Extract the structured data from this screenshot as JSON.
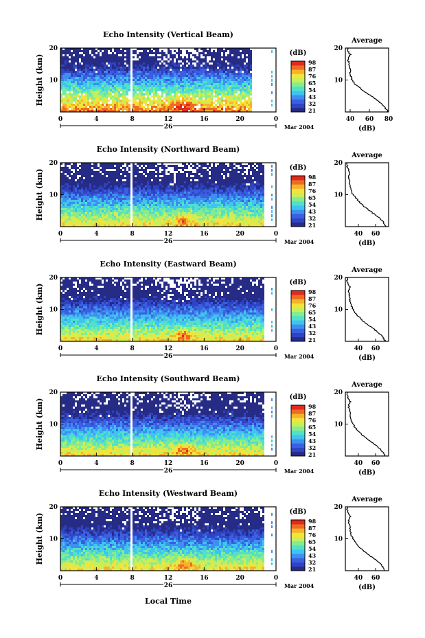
{
  "colors": {
    "scale": [
      "#262b86",
      "#2f44c4",
      "#3a5fe0",
      "#3d8ff0",
      "#3fc4f0",
      "#52e0c8",
      "#86ec8e",
      "#c8ef5a",
      "#f2e43a",
      "#f5b32c",
      "#ef6b22",
      "#e02a1e"
    ],
    "ink": "#000000"
  },
  "x_axis": {
    "title": "Local Time",
    "ticks": [
      "0",
      "4",
      "8",
      "12",
      "16",
      "20",
      "0"
    ],
    "day_label": "26",
    "month_label": "Mar 2004"
  },
  "panels": [
    {
      "title": "Echo Intensity (Vertical Beam)",
      "ylabel": "Height (km)",
      "yticks": [
        "20",
        "10"
      ],
      "cb_label": "(dB)",
      "cb_ticks": [
        "98",
        "87",
        "76",
        "65",
        "54",
        "43",
        "32",
        "21"
      ],
      "avg": {
        "title": "Average",
        "xlabel": "(dB)",
        "xticks": [
          "40",
          "60",
          "80"
        ],
        "yticks": [
          "20",
          "10"
        ]
      }
    },
    {
      "title": "Echo Intensity (Northward Beam)",
      "ylabel": "Height (km)",
      "yticks": [
        "20",
        "10"
      ],
      "cb_label": "(dB)",
      "cb_ticks": [
        "98",
        "87",
        "76",
        "65",
        "54",
        "43",
        "32",
        "21"
      ],
      "avg": {
        "title": "Average",
        "xlabel": "(dB)",
        "xticks": [
          "40",
          "60"
        ],
        "yticks": [
          "20",
          "10"
        ]
      }
    },
    {
      "title": "Echo Intensity (Eastward Beam)",
      "ylabel": "Height (km)",
      "yticks": [
        "20",
        "10"
      ],
      "cb_label": "(dB)",
      "cb_ticks": [
        "98",
        "87",
        "76",
        "65",
        "54",
        "43",
        "32",
        "21"
      ],
      "avg": {
        "title": "Average",
        "xlabel": "(dB)",
        "xticks": [
          "40",
          "60"
        ],
        "yticks": [
          "20",
          "10"
        ]
      }
    },
    {
      "title": "Echo Intensity (Southward Beam)",
      "ylabel": "Height (km)",
      "yticks": [
        "20",
        "10"
      ],
      "cb_label": "(dB)",
      "cb_ticks": [
        "98",
        "87",
        "76",
        "65",
        "54",
        "43",
        "32",
        "21"
      ],
      "avg": {
        "title": "Average",
        "xlabel": "(dB)",
        "xticks": [
          "40",
          "60"
        ],
        "yticks": [
          "20",
          "10"
        ]
      }
    },
    {
      "title": "Echo Intensity (Westward Beam)",
      "ylabel": "Height (km)",
      "yticks": [
        "20",
        "10"
      ],
      "cb_label": "(dB)",
      "cb_ticks": [
        "98",
        "87",
        "76",
        "65",
        "54",
        "43",
        "32",
        "21"
      ],
      "avg": {
        "title": "Average",
        "xlabel": "(dB)",
        "xticks": [
          "40",
          "60"
        ],
        "yticks": [
          "20",
          "10"
        ]
      }
    }
  ],
  "chart_data": [
    {
      "type": "heatmap",
      "title": "Echo Intensity (Vertical Beam)",
      "ylabel": "Height (km)",
      "xlim": [
        0,
        24
      ],
      "ylim": [
        0,
        20
      ],
      "zlim": [
        21,
        98
      ],
      "zlabel": "(dB)",
      "data_end_hour": 21.3,
      "gap_hour": 7.8
    },
    {
      "type": "line",
      "title": "Average",
      "xlabel": "(dB)",
      "xlim": [
        35,
        80
      ],
      "ylim": [
        0,
        20
      ],
      "x": [
        80,
        77,
        74,
        71,
        67,
        62,
        57,
        52,
        48,
        44,
        42,
        41,
        40,
        40,
        40,
        39,
        38,
        38,
        40,
        38,
        37
      ],
      "y": [
        0,
        1,
        2,
        3,
        4,
        5,
        6,
        7,
        8,
        9,
        10,
        11,
        12,
        13,
        14,
        15,
        16,
        17,
        18,
        19,
        20
      ]
    },
    {
      "type": "heatmap",
      "title": "Echo Intensity (Northward Beam)",
      "ylabel": "Height (km)",
      "xlim": [
        0,
        24
      ],
      "ylim": [
        0,
        20
      ],
      "zlim": [
        21,
        98
      ],
      "zlabel": "(dB)",
      "data_end_hour": 22.6,
      "gap_hour": 7.8
    },
    {
      "type": "line",
      "title": "Average",
      "xlabel": "(dB)",
      "xlim": [
        25,
        75
      ],
      "ylim": [
        0,
        20
      ],
      "x": [
        72,
        70,
        67,
        63,
        58,
        53,
        48,
        44,
        40,
        37,
        34,
        32,
        31,
        30,
        30,
        29,
        29,
        30,
        28,
        27,
        27
      ],
      "y": [
        0,
        1,
        2,
        3,
        4,
        5,
        6,
        7,
        8,
        9,
        10,
        11,
        12,
        13,
        14,
        15,
        16,
        17,
        18,
        19,
        20
      ]
    },
    {
      "type": "heatmap",
      "title": "Echo Intensity (Eastward Beam)",
      "ylabel": "Height (km)",
      "xlim": [
        0,
        24
      ],
      "ylim": [
        0,
        20
      ],
      "zlim": [
        21,
        98
      ],
      "zlabel": "(dB)",
      "data_end_hour": 22.6,
      "gap_hour": 7.8
    },
    {
      "type": "line",
      "title": "Average",
      "xlabel": "(dB)",
      "xlim": [
        25,
        75
      ],
      "ylim": [
        0,
        20
      ],
      "x": [
        71,
        69,
        66,
        62,
        57,
        52,
        47,
        43,
        39,
        36,
        34,
        32,
        31,
        30,
        30,
        29,
        29,
        31,
        28,
        27,
        27
      ],
      "y": [
        0,
        1,
        2,
        3,
        4,
        5,
        6,
        7,
        8,
        9,
        10,
        11,
        12,
        13,
        14,
        15,
        16,
        17,
        18,
        19,
        20
      ]
    },
    {
      "type": "heatmap",
      "title": "Echo Intensity (Southward Beam)",
      "ylabel": "Height (km)",
      "xlim": [
        0,
        24
      ],
      "ylim": [
        0,
        20
      ],
      "zlim": [
        21,
        98
      ],
      "zlabel": "(dB)",
      "data_end_hour": 22.6,
      "gap_hour": 7.8
    },
    {
      "type": "line",
      "title": "Average",
      "xlabel": "(dB)",
      "xlim": [
        25,
        75
      ],
      "ylim": [
        0,
        20
      ],
      "x": [
        71,
        69,
        66,
        62,
        57,
        52,
        47,
        43,
        39,
        36,
        34,
        32,
        31,
        30,
        30,
        29,
        29,
        31,
        28,
        27,
        27
      ],
      "y": [
        0,
        1,
        2,
        3,
        4,
        5,
        6,
        7,
        8,
        9,
        10,
        11,
        12,
        13,
        14,
        15,
        16,
        17,
        18,
        19,
        20
      ]
    },
    {
      "type": "heatmap",
      "title": "Echo Intensity (Westward Beam)",
      "ylabel": "Height (km)",
      "xlim": [
        0,
        24
      ],
      "ylim": [
        0,
        20
      ],
      "zlim": [
        21,
        98
      ],
      "zlabel": "(dB)",
      "data_end_hour": 22.6,
      "gap_hour": 7.8
    },
    {
      "type": "line",
      "title": "Average",
      "xlabel": "(dB)",
      "xlim": [
        25,
        75
      ],
      "ylim": [
        0,
        20
      ],
      "x": [
        71,
        69,
        66,
        62,
        57,
        52,
        47,
        43,
        39,
        36,
        34,
        32,
        31,
        30,
        30,
        29,
        29,
        31,
        28,
        27,
        27
      ],
      "y": [
        0,
        1,
        2,
        3,
        4,
        5,
        6,
        7,
        8,
        9,
        10,
        11,
        12,
        13,
        14,
        15,
        16,
        17,
        18,
        19,
        20
      ]
    }
  ]
}
